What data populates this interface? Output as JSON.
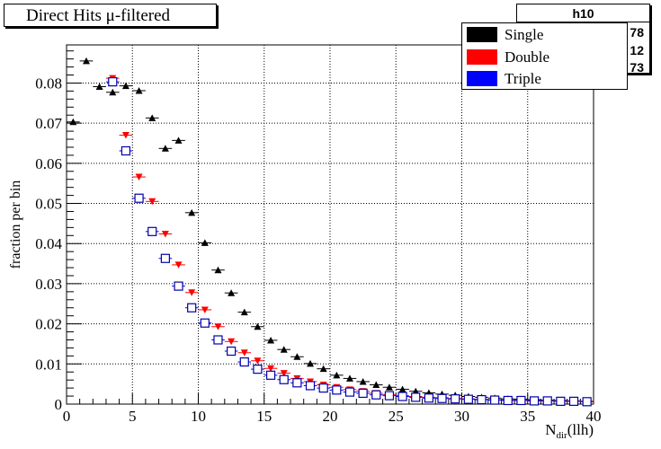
{
  "title": "Direct Hits μ-filtered",
  "stats": {
    "name": "h10",
    "fragments": [
      "78",
      "12",
      "73"
    ]
  },
  "colors": {
    "single": "#000000",
    "double": "#ff0000",
    "triple": "#0000ff",
    "triple_marker_edge": "#0000aa"
  },
  "chart_data": {
    "type": "scatter",
    "title": "Direct Hits μ-filtered",
    "xlabel_main": "N",
    "xlabel_sub": "dir",
    "xlabel_tail": "(llh)",
    "ylabel": "fraction per bin",
    "xlim": [
      0,
      40
    ],
    "ylim": [
      0,
      0.0895
    ],
    "grid": true,
    "legend_position": "top-right",
    "x_ticks": [
      0,
      5,
      10,
      15,
      20,
      25,
      30,
      35,
      40
    ],
    "x_tick_labels": [
      "0",
      "5",
      "10",
      "15",
      "20",
      "25",
      "30",
      "35",
      "40"
    ],
    "y_ticks": [
      0,
      0.01,
      0.02,
      0.03,
      0.04,
      0.05,
      0.06,
      0.07,
      0.08
    ],
    "y_tick_labels": [
      "0",
      "0.01",
      "0.02",
      "0.03",
      "0.04",
      "0.05",
      "0.06",
      "0.07",
      "0.08"
    ],
    "series": [
      {
        "name": "Single",
        "marker": "triangle-up",
        "x": [
          0.5,
          1.5,
          2.5,
          3.5,
          4.5,
          5.5,
          6.5,
          7.5,
          8.5,
          9.5,
          10.5,
          11.5,
          12.5,
          13.5,
          14.5,
          15.5,
          16.5,
          17.5,
          18.5,
          19.5,
          20.5,
          21.5,
          22.5,
          23.5,
          24.5,
          25.5,
          26.5,
          27.5,
          28.5,
          29.5,
          30.5,
          31.5,
          32.5,
          33.5,
          34.5,
          35.5,
          36.5,
          37.5,
          38.5,
          39.5
        ],
        "values": [
          0.0703,
          0.0855,
          0.0791,
          0.0777,
          0.0793,
          0.0781,
          0.0713,
          0.0637,
          0.0657,
          0.0477,
          0.0402,
          0.0334,
          0.0277,
          0.0229,
          0.0193,
          0.0159,
          0.0136,
          0.0118,
          0.0101,
          0.0088,
          0.0072,
          0.0064,
          0.0056,
          0.0048,
          0.0042,
          0.0037,
          0.0032,
          0.0028,
          0.0025,
          0.0022,
          0.0019,
          0.0017,
          0.0015,
          0.0013,
          0.0012,
          0.0011,
          0.001,
          0.0009,
          0.0008,
          0.0007
        ]
      },
      {
        "name": "Double",
        "marker": "triangle-down",
        "x": [
          3.5,
          4.5,
          5.5,
          6.5,
          7.5,
          8.5,
          9.5,
          10.5,
          11.5,
          12.5,
          13.5,
          14.5,
          15.5,
          16.5,
          17.5,
          18.5,
          19.5,
          20.5,
          21.5,
          22.5,
          23.5,
          24.5,
          25.5,
          26.5,
          27.5,
          28.5,
          29.5,
          30.5,
          31.5,
          32.5,
          33.5,
          34.5,
          35.5,
          36.5,
          37.5,
          38.5,
          39.5
        ],
        "values": [
          0.0812,
          0.067,
          0.0566,
          0.0505,
          0.0424,
          0.0347,
          0.0278,
          0.0235,
          0.0193,
          0.0156,
          0.0128,
          0.0108,
          0.0089,
          0.0077,
          0.0064,
          0.0056,
          0.0048,
          0.0042,
          0.0036,
          0.0032,
          0.0027,
          0.0024,
          0.0021,
          0.0019,
          0.0017,
          0.0016,
          0.0014,
          0.0013,
          0.0012,
          0.0011,
          0.001,
          0.001,
          0.0009,
          0.0009,
          0.0008,
          0.0008,
          0.0007
        ]
      },
      {
        "name": "Triple",
        "marker": "open-square",
        "x": [
          3.5,
          4.5,
          5.5,
          6.5,
          7.5,
          8.5,
          9.5,
          10.5,
          11.5,
          12.5,
          13.5,
          14.5,
          15.5,
          16.5,
          17.5,
          18.5,
          19.5,
          20.5,
          21.5,
          22.5,
          23.5,
          24.5,
          25.5,
          26.5,
          27.5,
          28.5,
          29.5,
          30.5,
          31.5,
          32.5,
          33.5,
          34.5,
          35.5,
          36.5,
          37.5,
          38.5,
          39.5
        ],
        "values": [
          0.0803,
          0.0631,
          0.0513,
          0.043,
          0.0363,
          0.0294,
          0.024,
          0.0202,
          0.016,
          0.0132,
          0.0105,
          0.0087,
          0.0072,
          0.0061,
          0.0053,
          0.0046,
          0.004,
          0.0035,
          0.003,
          0.0027,
          0.0023,
          0.0021,
          0.0019,
          0.0017,
          0.0015,
          0.0014,
          0.0013,
          0.0012,
          0.0011,
          0.001,
          0.0009,
          0.0009,
          0.0008,
          0.0008,
          0.0007,
          0.0007,
          0.0006
        ]
      }
    ]
  }
}
